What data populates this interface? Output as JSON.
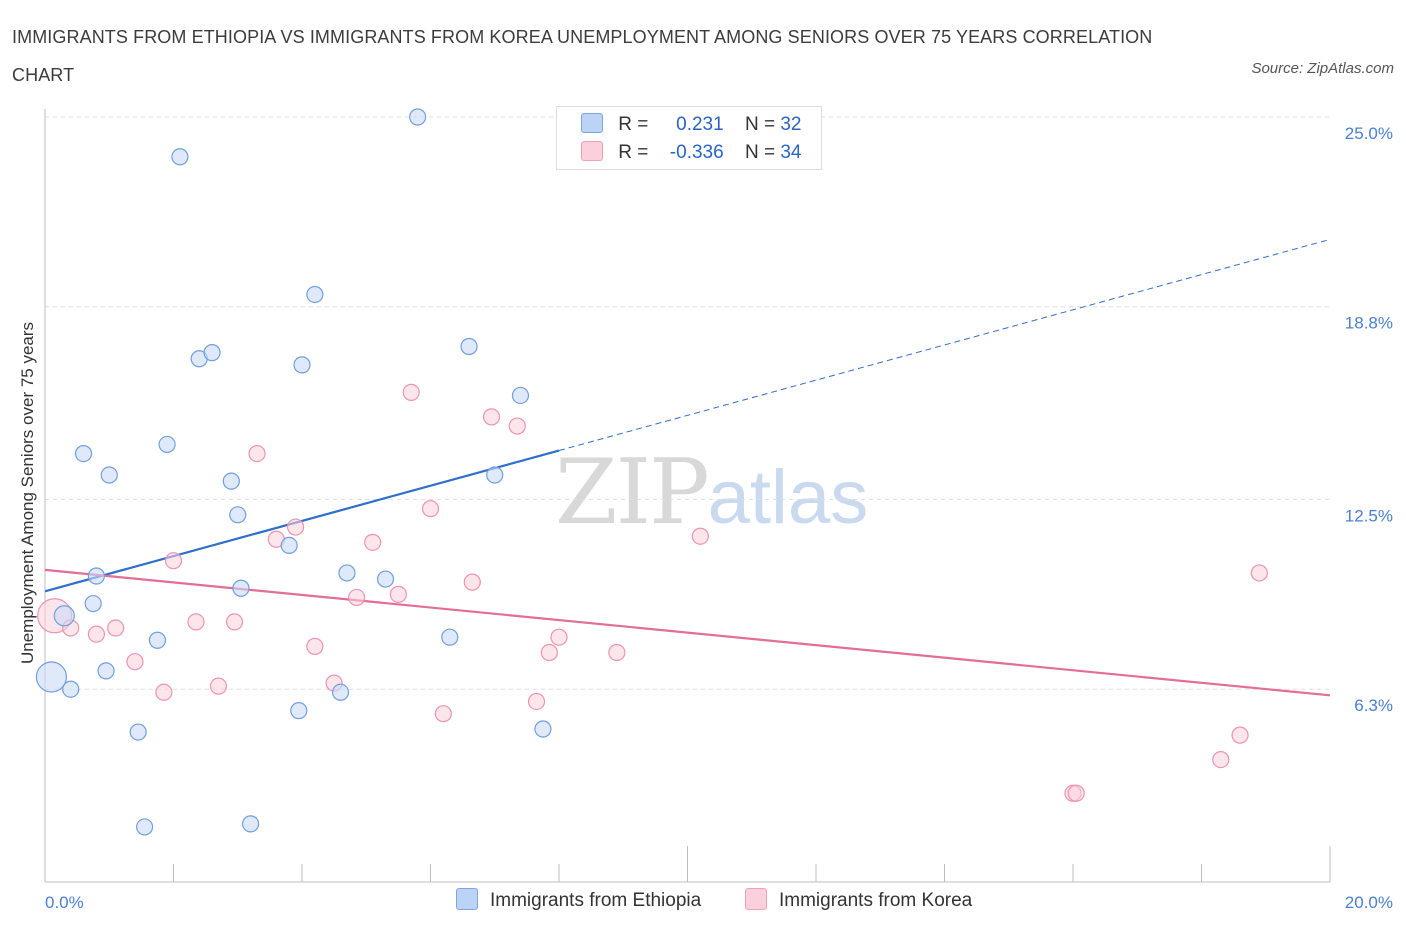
{
  "title": "IMMIGRANTS FROM ETHIOPIA VS IMMIGRANTS FROM KOREA UNEMPLOYMENT AMONG SENIORS OVER 75 YEARS CORRELATION CHART",
  "source": "Source: ZipAtlas.com",
  "watermark": {
    "zip": "ZIP",
    "atlas": "atlas"
  },
  "legend": {
    "ethiopia": {
      "r_label": "R =",
      "r_value": "0.231",
      "n_label": "N =",
      "n_value": "32"
    },
    "korea": {
      "r_label": "R =",
      "r_value": "-0.336",
      "n_label": "N =",
      "n_value": "34"
    }
  },
  "chart_data": {
    "type": "scatter",
    "title": "IMMIGRANTS FROM ETHIOPIA VS IMMIGRANTS FROM KOREA UNEMPLOYMENT AMONG SENIORS OVER 75 YEARS CORRELATION CHART",
    "xlabel": "",
    "ylabel": "Unemployment Among Seniors over 75 years",
    "xlim": [
      0,
      20
    ],
    "ylim": [
      0,
      25
    ],
    "x_tick_labels": [
      "0.0%",
      "20.0%"
    ],
    "y_ticks": [
      6.3,
      12.5,
      18.8,
      25.0
    ],
    "y_tick_labels": [
      "6.3%",
      "12.5%",
      "18.8%",
      "25.0%"
    ],
    "colors": {
      "ethiopia": "#6f9fe0",
      "korea": "#ee93b0",
      "ethiopia_line": "#2f6fcc",
      "korea_line": "#e36d95"
    },
    "series": [
      {
        "name": "Immigrants from Ethiopia",
        "points": [
          [
            0.1,
            6.7
          ],
          [
            0.3,
            8.7
          ],
          [
            0.4,
            6.3
          ],
          [
            0.6,
            14.0
          ],
          [
            0.75,
            9.1
          ],
          [
            0.8,
            10.0
          ],
          [
            0.95,
            6.9
          ],
          [
            1.0,
            13.3
          ],
          [
            1.45,
            4.9
          ],
          [
            1.55,
            1.8
          ],
          [
            1.75,
            7.9
          ],
          [
            1.9,
            14.3
          ],
          [
            2.1,
            23.7
          ],
          [
            2.4,
            17.1
          ],
          [
            2.6,
            17.3
          ],
          [
            2.9,
            13.1
          ],
          [
            3.0,
            12.0
          ],
          [
            3.05,
            9.6
          ],
          [
            3.2,
            1.9
          ],
          [
            3.8,
            11.0
          ],
          [
            3.95,
            5.6
          ],
          [
            4.0,
            16.9
          ],
          [
            4.2,
            19.2
          ],
          [
            4.6,
            6.2
          ],
          [
            4.7,
            10.1
          ],
          [
            5.3,
            9.9
          ],
          [
            5.8,
            25.0
          ],
          [
            6.3,
            8.0
          ],
          [
            6.6,
            17.5
          ],
          [
            7.0,
            13.3
          ],
          [
            7.4,
            15.9
          ],
          [
            7.75,
            5.0
          ]
        ],
        "trend": {
          "x": [
            0,
            8
          ],
          "y": [
            9.5,
            14.1
          ],
          "dashed_extension": {
            "x": [
              8,
              20
            ],
            "y": [
              14.1,
              21.0
            ]
          }
        },
        "bubble_sizes": {
          "0.1,6.7": "large",
          "0.3,8.7": "medium"
        }
      },
      {
        "name": "Immigrants from Korea",
        "points": [
          [
            0.15,
            8.7
          ],
          [
            0.4,
            8.3
          ],
          [
            0.8,
            8.1
          ],
          [
            1.1,
            8.3
          ],
          [
            1.4,
            7.2
          ],
          [
            1.85,
            6.2
          ],
          [
            2.0,
            10.5
          ],
          [
            2.35,
            8.5
          ],
          [
            2.7,
            6.4
          ],
          [
            2.95,
            8.5
          ],
          [
            3.3,
            14.0
          ],
          [
            3.6,
            11.2
          ],
          [
            3.9,
            11.6
          ],
          [
            4.2,
            7.7
          ],
          [
            4.5,
            6.5
          ],
          [
            4.85,
            9.3
          ],
          [
            5.1,
            11.1
          ],
          [
            5.5,
            9.4
          ],
          [
            5.7,
            16.0
          ],
          [
            6.0,
            12.2
          ],
          [
            6.2,
            5.5
          ],
          [
            6.65,
            9.8
          ],
          [
            6.95,
            15.2
          ],
          [
            7.35,
            14.9
          ],
          [
            7.65,
            5.9
          ],
          [
            7.85,
            7.5
          ],
          [
            8.0,
            8.0
          ],
          [
            8.9,
            7.5
          ],
          [
            10.2,
            11.3
          ],
          [
            16.0,
            2.9
          ],
          [
            16.05,
            2.9
          ],
          [
            18.3,
            4.0
          ],
          [
            18.6,
            4.8
          ],
          [
            18.9,
            10.1
          ]
        ],
        "trend": {
          "x": [
            0,
            20
          ],
          "y": [
            10.2,
            6.1
          ]
        }
      }
    ]
  },
  "bottom_legend": [
    "Immigrants from Ethiopia",
    "Immigrants from Korea"
  ]
}
